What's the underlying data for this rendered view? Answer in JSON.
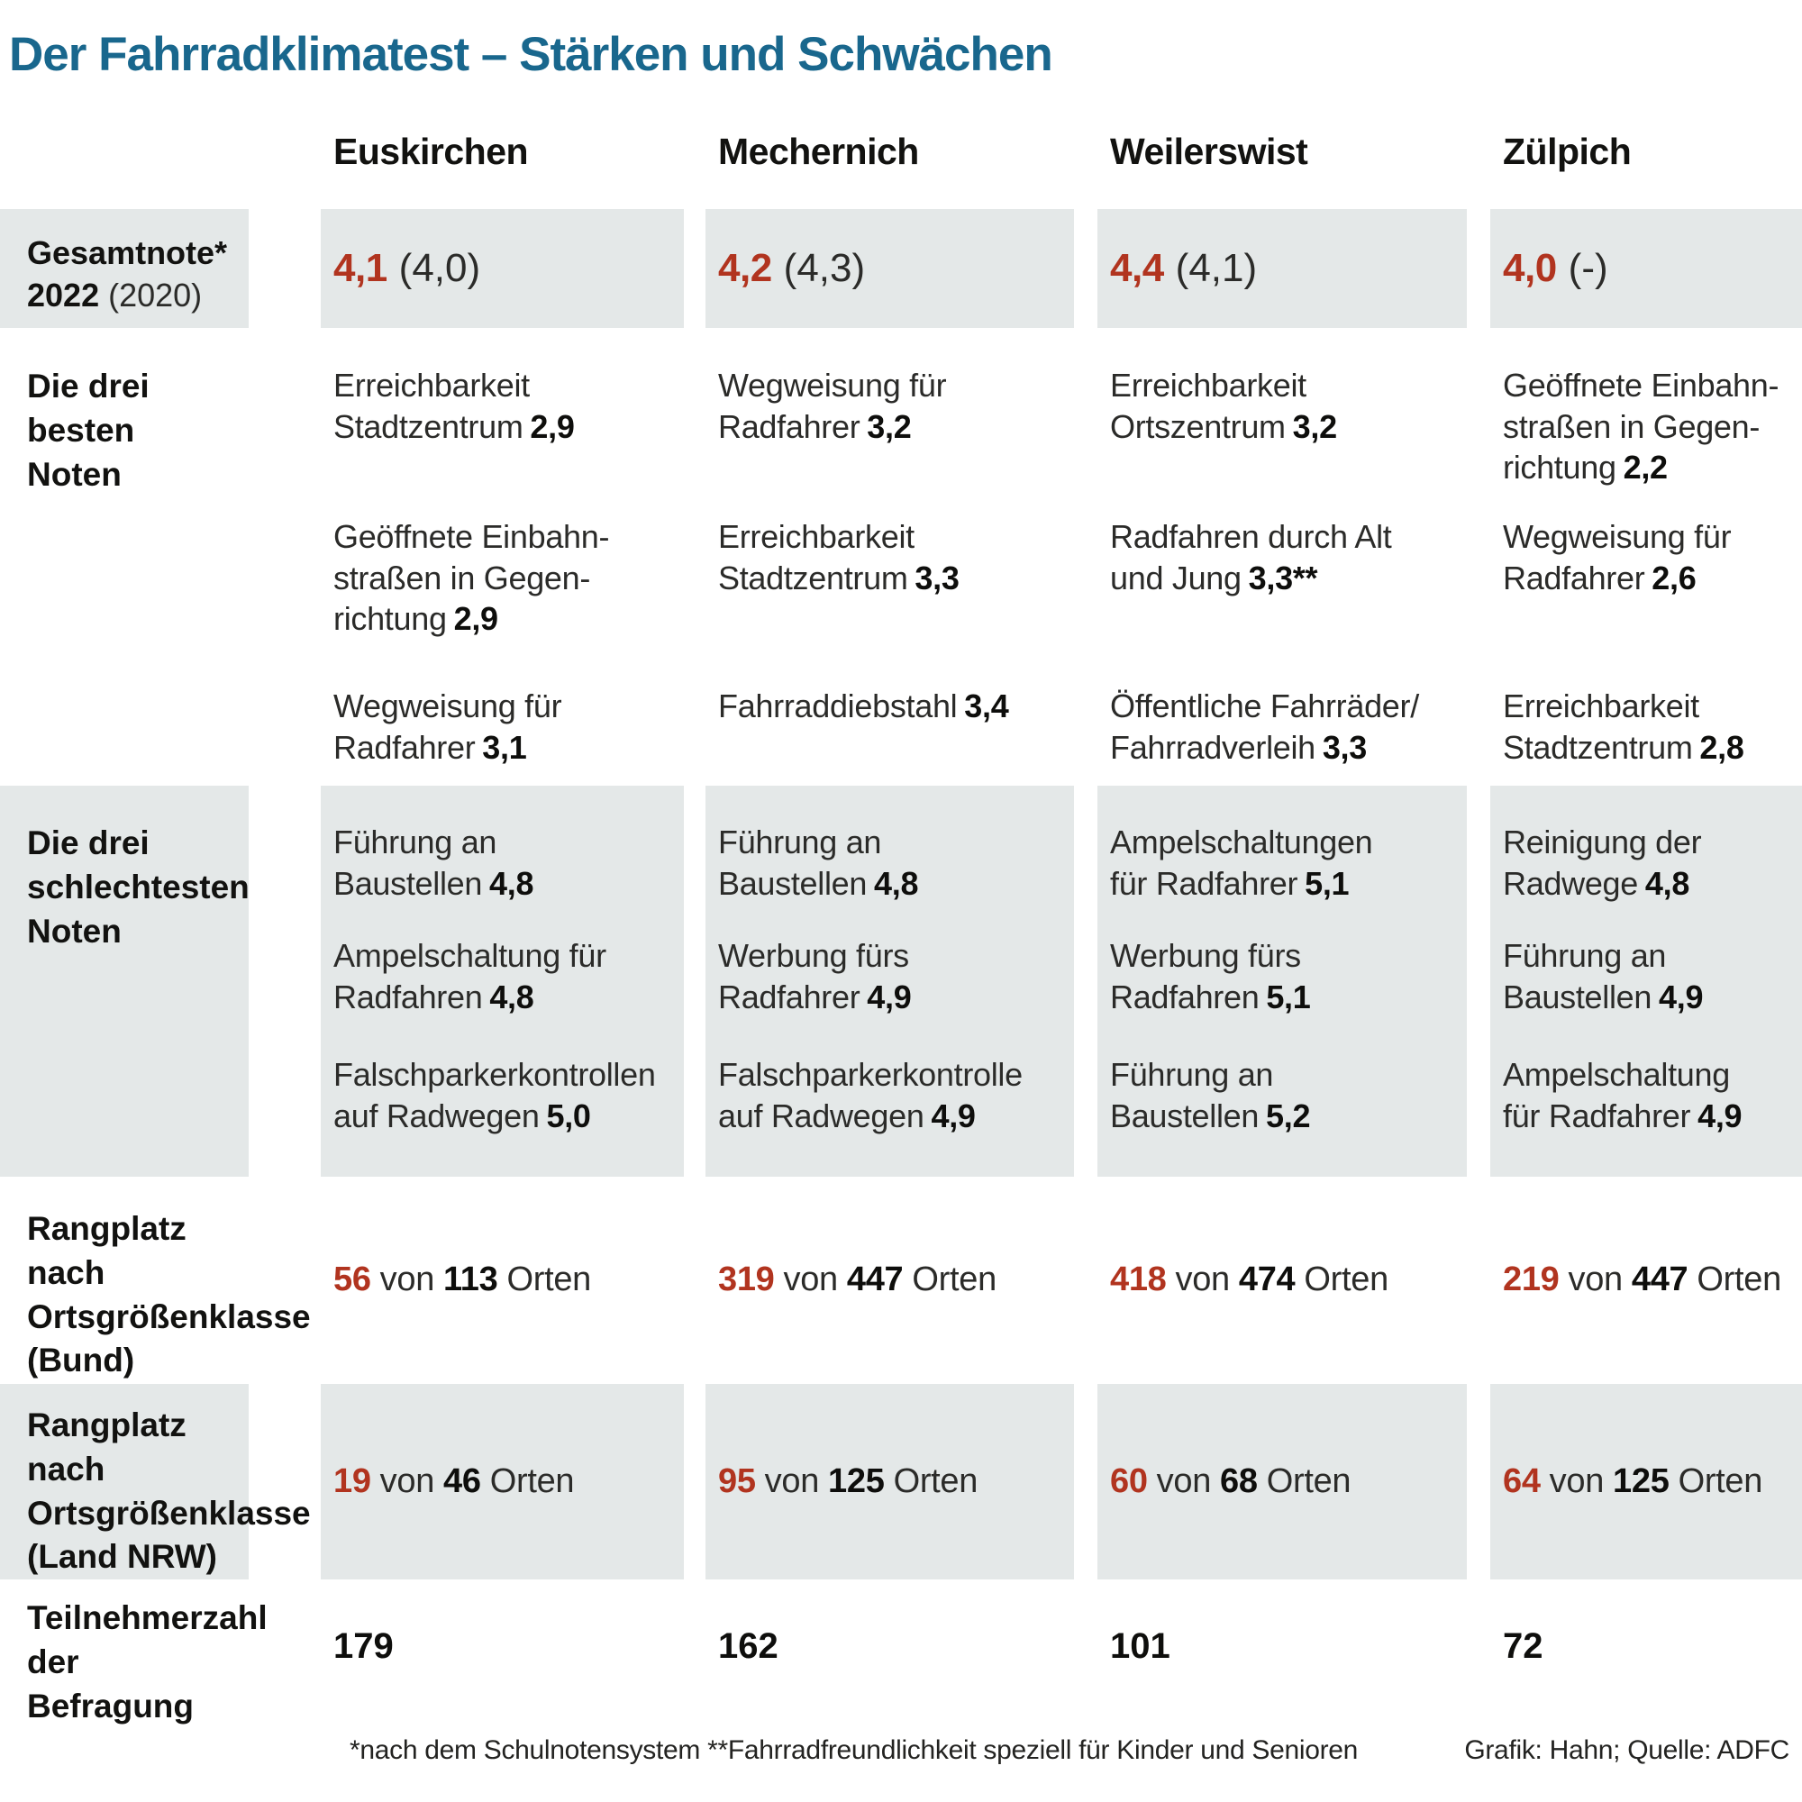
{
  "title": "Der Fahrradklimatest – Stärken und Schwächen",
  "colors": {
    "accent_red": "#b1341f",
    "title_teal": "#19678d",
    "row_gray": "#e4e8e8"
  },
  "chart_data": {
    "type": "table",
    "title": "Der Fahrradklimatest – Stärken und Schwächen",
    "columns": [
      "Euskirchen",
      "Mechernich",
      "Weilerswist",
      "Zülpich"
    ],
    "gesamtnote": {
      "label_line1": "Gesamtnote*",
      "label_year_bold": "2022",
      "label_year_prev": "(2020)",
      "values": [
        {
          "grade": "4,1",
          "previous": "(4,0)"
        },
        {
          "grade": "4,2",
          "previous": "(4,3)"
        },
        {
          "grade": "4,4",
          "previous": "(4,1)"
        },
        {
          "grade": "4,0",
          "previous": "(-)"
        }
      ]
    },
    "best": {
      "label": "Die drei besten\nNoten",
      "cells": [
        {
          "items": [
            {
              "text": "Erreichbarkeit\nStadtzentrum",
              "grade": "2,9"
            },
            {
              "text": "Geöffnete Einbahn-\nstraßen in Gegen-\nrichtung",
              "grade": "2,9"
            },
            {
              "text": "Wegweisung für\nRadfahrer",
              "grade": "3,1"
            }
          ]
        },
        {
          "items": [
            {
              "text": "Wegweisung für\nRadfahrer",
              "grade": "3,2"
            },
            {
              "text": "Erreichbarkeit\nStadtzentrum",
              "grade": "3,3"
            },
            {
              "text": "Fahrraddiebstahl",
              "grade": "3,4"
            }
          ]
        },
        {
          "items": [
            {
              "text": "Erreichbarkeit\nOrtszentrum",
              "grade": "3,2"
            },
            {
              "text": "Radfahren durch Alt\nund Jung",
              "grade": "3,3**"
            },
            {
              "text": "Öffentliche Fahrräder/\nFahrradverleih",
              "grade": "3,3"
            }
          ]
        },
        {
          "items": [
            {
              "text": "Geöffnete Einbahn-\nstraßen in Gegen-\nrichtung",
              "grade": "2,2"
            },
            {
              "text": "Wegweisung für\nRadfahrer",
              "grade": "2,6"
            },
            {
              "text": "Erreichbarkeit\nStadtzentrum",
              "grade": "2,8"
            }
          ]
        }
      ]
    },
    "worst": {
      "label": "Die drei\nschlechtesten\nNoten",
      "cells": [
        {
          "items": [
            {
              "text": "Führung an\nBaustellen",
              "grade": "4,8"
            },
            {
              "text": "Ampelschaltung für\nRadfahren",
              "grade": "4,8"
            },
            {
              "text": "Falschparkerkontrollen\nauf Radwegen",
              "grade": "5,0"
            }
          ]
        },
        {
          "items": [
            {
              "text": "Führung an\nBaustellen",
              "grade": "4,8"
            },
            {
              "text": "Werbung fürs\nRadfahrer",
              "grade": "4,9"
            },
            {
              "text": "Falschparkerkontrolle\nauf Radwegen",
              "grade": "4,9"
            }
          ]
        },
        {
          "items": [
            {
              "text": "Ampelschaltungen\nfür Radfahrer",
              "grade": "5,1"
            },
            {
              "text": "Werbung fürs\nRadfahren",
              "grade": "5,1"
            },
            {
              "text": "Führung an\nBaustellen",
              "grade": "5,2"
            }
          ]
        },
        {
          "items": [
            {
              "text": "Reinigung der\nRadwege",
              "grade": "4,8"
            },
            {
              "text": "Führung an\nBaustellen",
              "grade": "4,9"
            },
            {
              "text": "Ampelschaltung\nfür Radfahrer",
              "grade": "4,9"
            }
          ]
        }
      ]
    },
    "rang_bund": {
      "label": "Rangplatz nach\nOrtsgrößenklasse\n(Bund)",
      "word_von": "von",
      "word_orten": "Orten",
      "values": [
        {
          "rank": "56",
          "total": "113"
        },
        {
          "rank": "319",
          "total": "447"
        },
        {
          "rank": "418",
          "total": "474"
        },
        {
          "rank": "219",
          "total": "447"
        }
      ]
    },
    "rang_nrw": {
      "label": "Rangplatz nach\nOrtsgrößenklasse\n(Land NRW)",
      "word_von": "von",
      "word_orten": "Orten",
      "values": [
        {
          "rank": "19",
          "total": "46"
        },
        {
          "rank": "95",
          "total": "125"
        },
        {
          "rank": "60",
          "total": "68"
        },
        {
          "rank": "64",
          "total": "125"
        }
      ]
    },
    "teilnehmer": {
      "label": "Teilnehmerzahl\nder Befragung",
      "values": [
        "179",
        "162",
        "101",
        "72"
      ]
    },
    "footnote": "*nach dem Schulnotensystem **Fahrradfreundlichkeit speziell für Kinder und Senioren",
    "credit": "Grafik: Hahn; Quelle: ADFC"
  }
}
